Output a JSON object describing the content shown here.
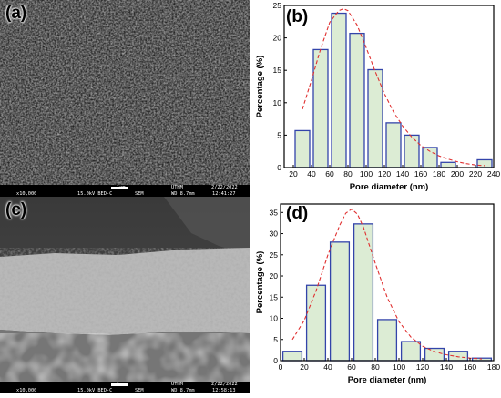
{
  "panels": {
    "a": {
      "label": "(a)",
      "info": {
        "mag": "x10,000",
        "kv": "15.0kV BED-C",
        "mode": "SEM",
        "scale": "1μm",
        "inst": "UTHM",
        "wd": "WD 8.7mm",
        "date": "2/22/2022",
        "time": "12:41:27"
      }
    },
    "b": {
      "label": "(b)"
    },
    "c": {
      "label": "(c)",
      "info": {
        "mag": "x10,000",
        "kv": "15.0kV BED-C",
        "mode": "SEM",
        "scale": "1μm",
        "inst": "UTHM",
        "wd": "WD 8.7mm",
        "date": "2/22/2022",
        "time": "12:58:13"
      }
    },
    "d": {
      "label": "(d)"
    }
  },
  "colors": {
    "bar_fill": "#dcecd4",
    "bar_stroke": "#3344aa",
    "fit_curve": "#e03030"
  },
  "chart_data": [
    {
      "panel": "b",
      "type": "bar",
      "xlabel": "Pore diameter (nm)",
      "ylabel": "Percentage (%)",
      "xlim": [
        10,
        240
      ],
      "ylim": [
        0,
        25
      ],
      "xticks": [
        20,
        40,
        60,
        80,
        100,
        120,
        140,
        160,
        180,
        200,
        220,
        240
      ],
      "yticks": [
        0,
        5,
        10,
        15,
        20,
        25
      ],
      "bin_width": 16,
      "bins": [
        30,
        50,
        70,
        90,
        110,
        130,
        150,
        170,
        190,
        230
      ],
      "values": [
        5.7,
        18.2,
        23.8,
        20.7,
        15.1,
        6.9,
        5.0,
        3.1,
        0.8,
        1.2
      ],
      "fit": {
        "style": "dashed",
        "x": [
          30,
          40,
          50,
          60,
          70,
          75,
          80,
          90,
          100,
          110,
          120,
          130,
          140,
          150,
          160,
          170,
          180,
          190,
          200,
          210,
          220,
          230
        ],
        "y": [
          9.0,
          13.5,
          18.3,
          22.4,
          24.2,
          24.5,
          24.2,
          22.0,
          18.5,
          14.8,
          11.4,
          8.6,
          6.4,
          4.7,
          3.4,
          2.5,
          1.8,
          1.3,
          0.9,
          0.6,
          0.4,
          0.3
        ]
      }
    },
    {
      "panel": "d",
      "type": "bar",
      "xlabel": "Pore diameter (nm)",
      "ylabel": "Percentage (%)",
      "xlim": [
        0,
        180
      ],
      "ylim": [
        0,
        37
      ],
      "xticks": [
        0,
        20,
        40,
        60,
        80,
        100,
        120,
        140,
        160,
        180
      ],
      "yticks": [
        0,
        5,
        10,
        15,
        20,
        25,
        30,
        35
      ],
      "bin_width": 16,
      "bins": [
        10,
        30,
        50,
        70,
        90,
        110,
        130,
        150,
        170
      ],
      "values": [
        2.2,
        17.8,
        28.0,
        32.3,
        9.7,
        4.5,
        2.9,
        2.2,
        0.6
      ],
      "fit": {
        "style": "dashed",
        "x": [
          10,
          20,
          30,
          40,
          50,
          55,
          60,
          65,
          70,
          80,
          90,
          100,
          110,
          120,
          130,
          140,
          150,
          160,
          170
        ],
        "y": [
          5.0,
          9.5,
          16.5,
          25.0,
          32.0,
          34.8,
          35.8,
          34.6,
          31.5,
          23.0,
          15.0,
          9.2,
          5.6,
          3.4,
          2.1,
          1.4,
          0.9,
          0.6,
          0.4
        ]
      }
    }
  ]
}
